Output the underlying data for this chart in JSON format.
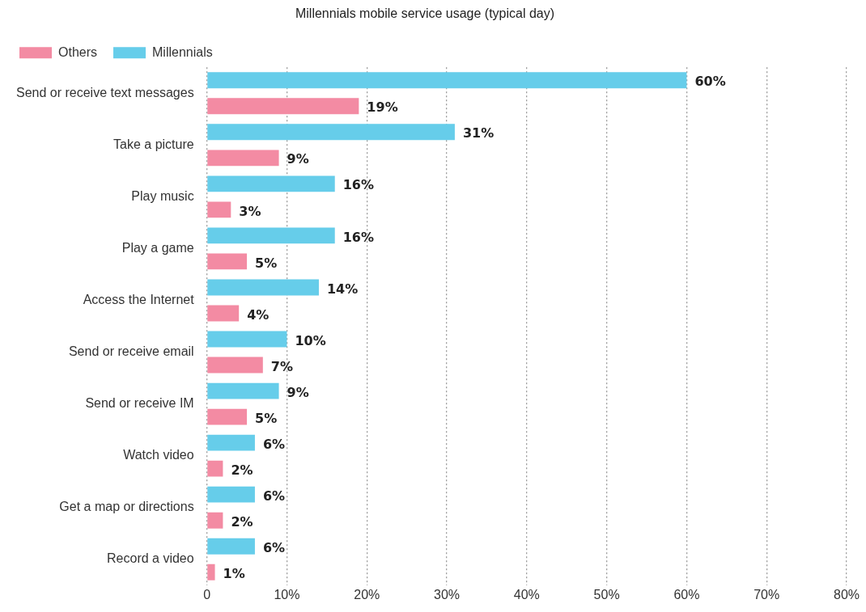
{
  "chart_data": {
    "type": "bar",
    "orientation": "horizontal",
    "title": "Millennials mobile service usage (typical day)",
    "categories": [
      "Send or receive text messages",
      "Take a picture",
      "Play music",
      "Play a game",
      "Access the Internet",
      "Send or receive email",
      "Send or receive IM",
      "Watch video",
      "Get a map or directions",
      "Record a video"
    ],
    "series": [
      {
        "name": "Millennials",
        "color": "#66cdea",
        "values": [
          60,
          31,
          16,
          16,
          14,
          10,
          9,
          6,
          6,
          6
        ],
        "value_labels": [
          "60%",
          "31%",
          "16%",
          "16%",
          "14%",
          "10%",
          "9%",
          "6%",
          "6%",
          "6%"
        ]
      },
      {
        "name": "Others",
        "color": "#f38ba3",
        "values": [
          19,
          9,
          3,
          5,
          4,
          7,
          5,
          2,
          2,
          1
        ],
        "value_labels": [
          "19%",
          "9%",
          "3%",
          "5%",
          "4%",
          "7%",
          "5%",
          "2%",
          "2%",
          "1%"
        ]
      }
    ],
    "xlim": [
      0,
      80
    ],
    "xticks": [
      0,
      {
        "value": 10,
        "label": "10%"
      },
      {
        "value": 20,
        "label": "20%"
      },
      {
        "value": 30,
        "label": "30%"
      },
      {
        "value": 40,
        "label": "40%"
      },
      {
        "value": 50,
        "label": "50%"
      },
      {
        "value": 60,
        "label": "60%"
      },
      {
        "value": 70,
        "label": "70%"
      },
      {
        "value": 80,
        "label": "80%"
      }
    ],
    "grid": "x",
    "legend": "top left"
  }
}
